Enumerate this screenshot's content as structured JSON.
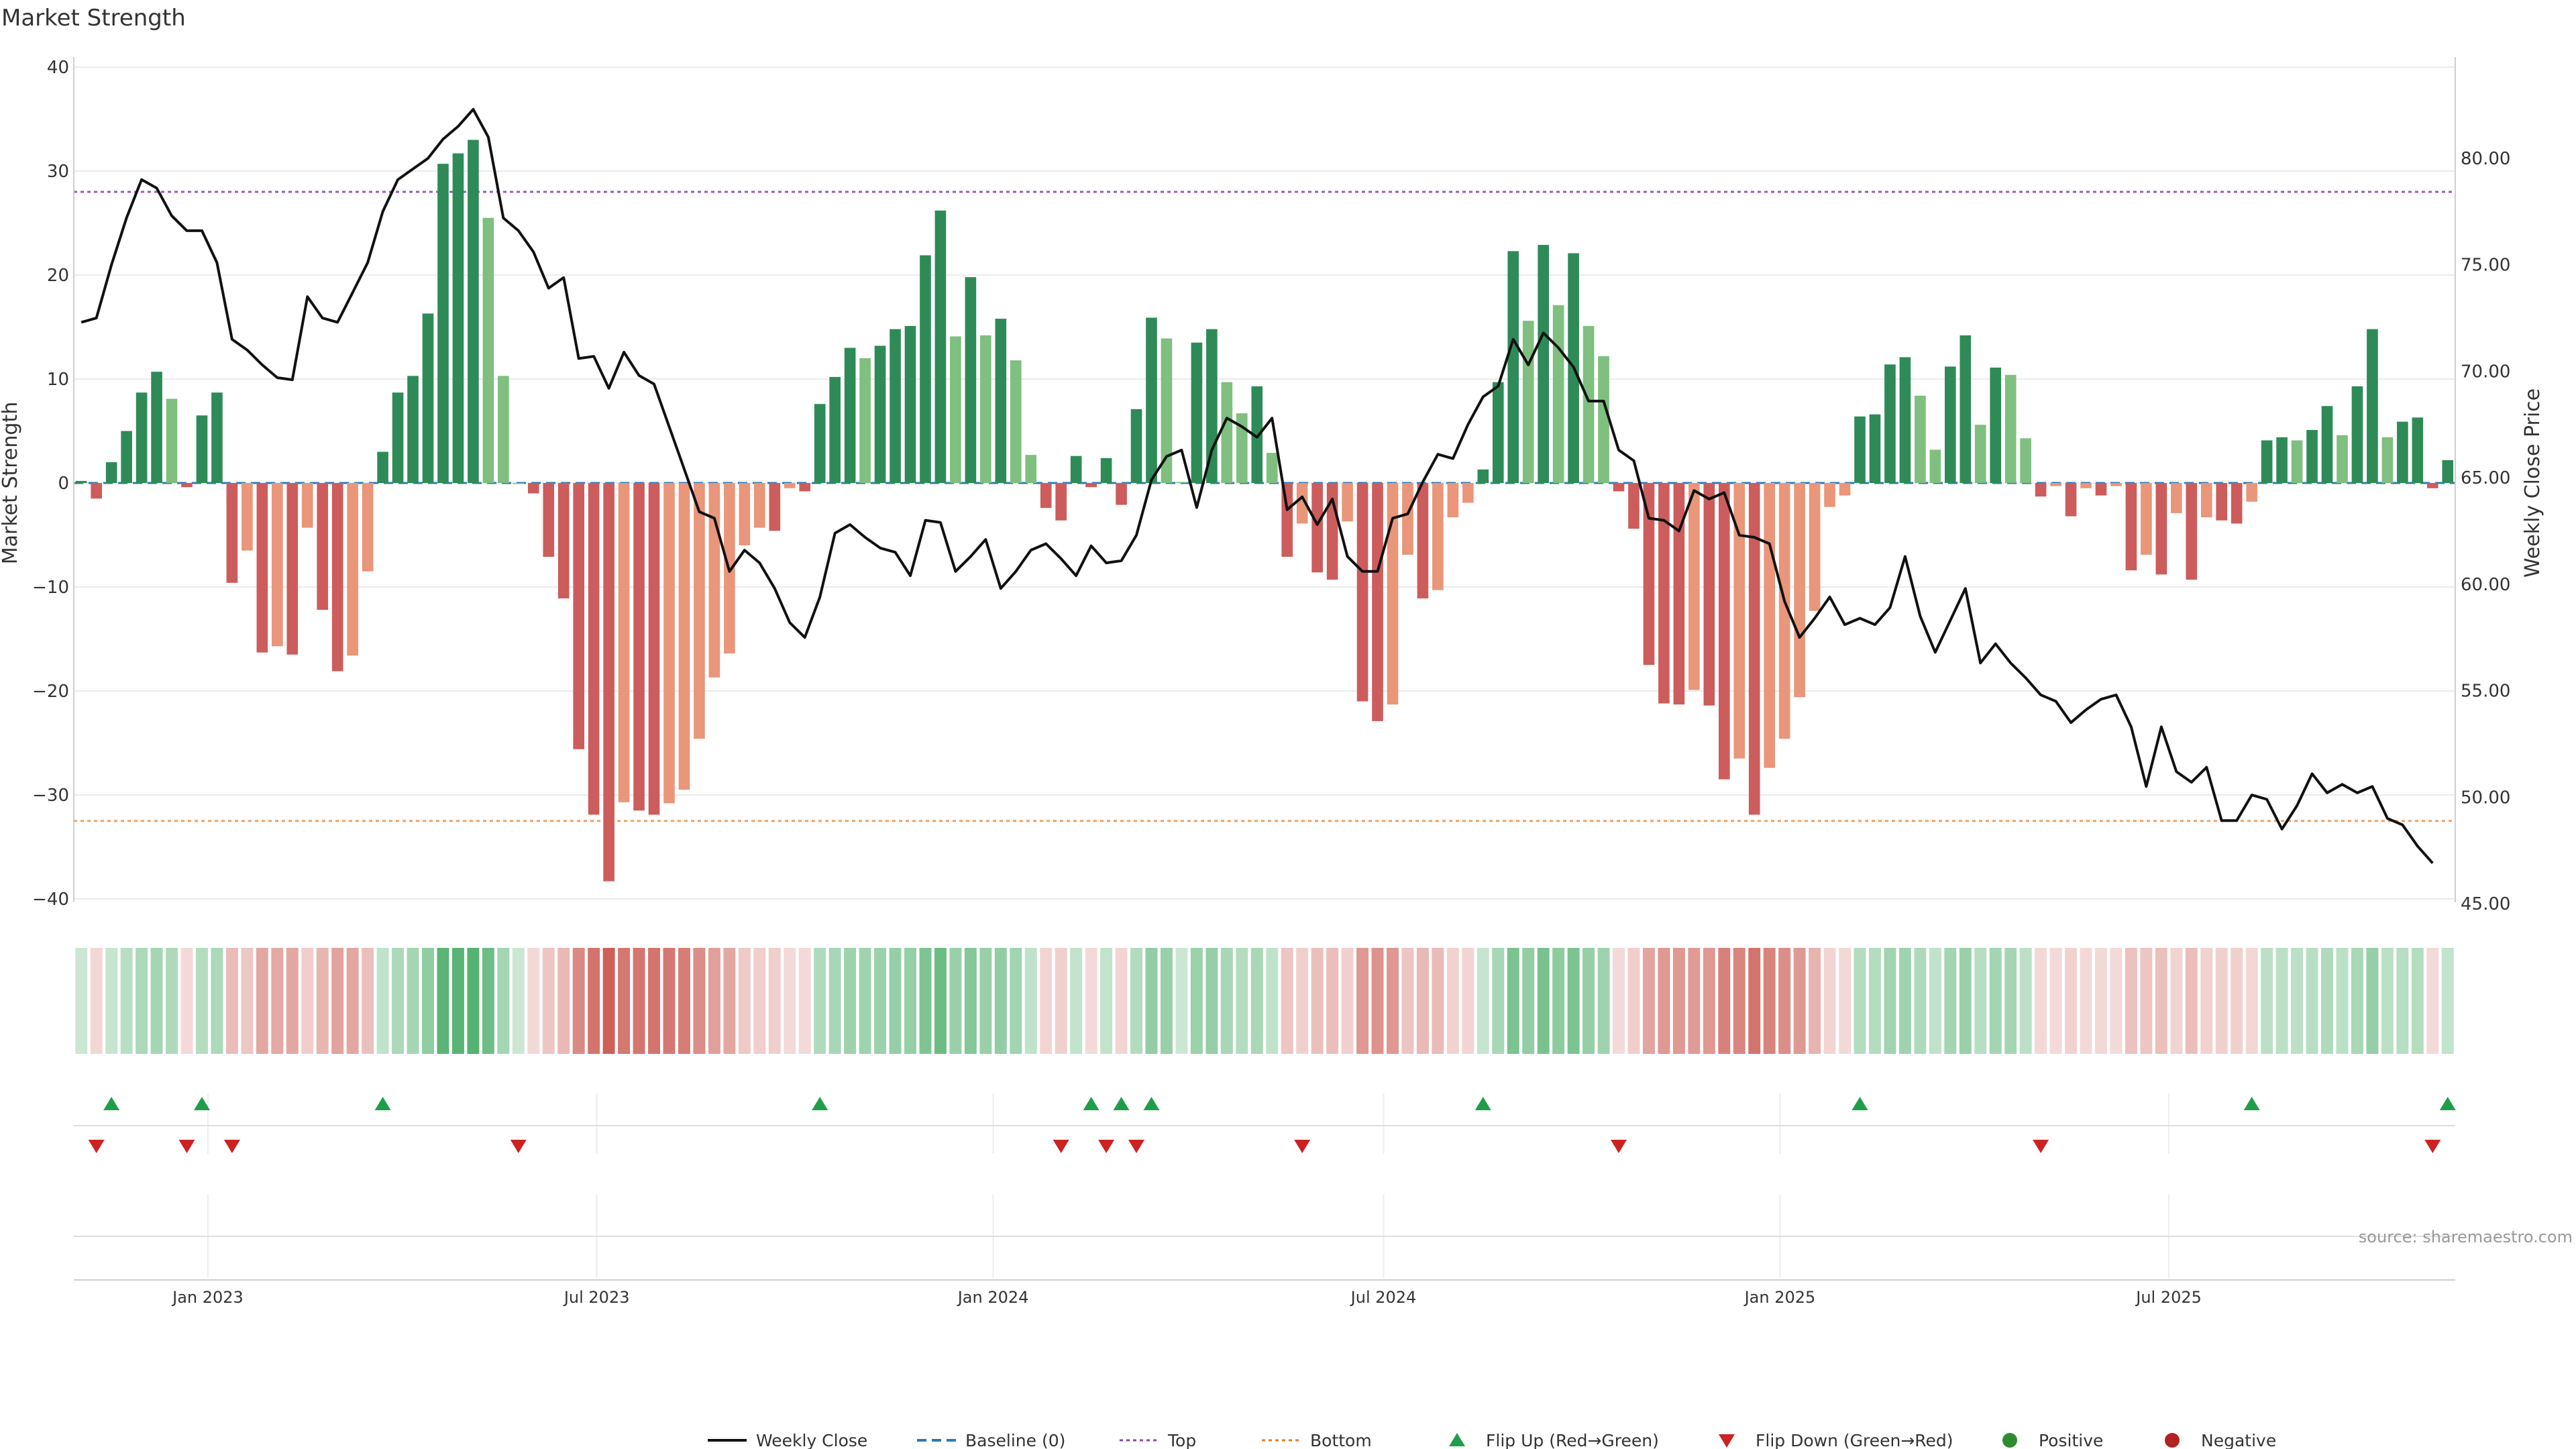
{
  "chart_data": {
    "type": "bar",
    "title": "Market Strength",
    "ylabel_left": "Market Strength",
    "ylabel_right": "Weekly Close Price",
    "ylim_left": [
      -42,
      40
    ],
    "yticks_left": [
      40,
      30,
      20,
      10,
      0,
      -10,
      -20,
      -30,
      -40
    ],
    "ytick_labels_left": [
      "40",
      "30",
      "20",
      "10",
      "0",
      "−10",
      "−20",
      "−30",
      "−40"
    ],
    "ylim_right": [
      45,
      83
    ],
    "yticks_right": [
      80,
      75,
      70,
      65,
      60,
      55,
      50,
      45
    ],
    "ytick_labels_right": [
      "80.00",
      "75.00",
      "70.00",
      "65.00",
      "60.00",
      "55.00",
      "50.00",
      "45.00"
    ],
    "x_ticks": [
      {
        "label": "Jan 2023",
        "index": 8.4
      },
      {
        "label": "Jul 2023",
        "index": 34.2
      },
      {
        "label": "Jan 2024",
        "index": 60.5
      },
      {
        "label": "Jul 2024",
        "index": 86.4
      },
      {
        "label": "Jan 2025",
        "index": 112.7
      },
      {
        "label": "Jul 2025",
        "index": 138.5
      }
    ],
    "top_level": 28,
    "bottom_level": -32.5,
    "baseline": 0,
    "strength": [
      0.2,
      -1.5,
      2,
      5,
      8.7,
      10.7,
      8.1,
      -0.4,
      6.5,
      8.7,
      -9.6,
      -6.5,
      -16.3,
      -15.7,
      -16.5,
      -4.3,
      -12.2,
      -18.1,
      -16.6,
      -8.5,
      3,
      8.7,
      10.3,
      16.3,
      30.7,
      31.7,
      33,
      25.5,
      10.3,
      0,
      -1,
      -7.1,
      -11.1,
      -25.6,
      -31.9,
      -38.3,
      -30.7,
      -31.5,
      -31.9,
      -30.8,
      -29.5,
      -24.6,
      -18.7,
      -16.4,
      -6,
      -4.3,
      -4.6,
      -0.5,
      -0.8,
      7.6,
      10.2,
      13,
      12,
      13.2,
      14.8,
      15.1,
      21.9,
      26.2,
      14.1,
      19.8,
      14.2,
      15.8,
      11.8,
      2.7,
      -2.4,
      -3.6,
      2.6,
      -0.4,
      2.4,
      -2.1,
      7.1,
      15.9,
      13.9,
      0.1,
      13.5,
      14.8,
      9.7,
      6.7,
      9.3,
      2.9,
      -7.1,
      -3.9,
      -8.6,
      -9.3,
      -3.7,
      -21,
      -22.9,
      -21.3,
      -6.9,
      -11.1,
      -10.3,
      -3.3,
      -1.9,
      1.3,
      9.7,
      22.3,
      15.6,
      22.9,
      17.1,
      22.1,
      15.1,
      12.2,
      -0.8,
      -4.4,
      -17.5,
      -21.2,
      -21.3,
      -19.9,
      -21.4,
      -28.5,
      -26.5,
      -31.9,
      -27.4,
      -24.6,
      -20.6,
      -12.3,
      -2.3,
      -1.2,
      6.4,
      6.6,
      11.4,
      12.1,
      8.4,
      3.2,
      11.2,
      14.2,
      5.6,
      11.1,
      10.4,
      4.3,
      -1.3,
      -0.3,
      -3.2,
      -0.5,
      -1.2,
      -0.3,
      -8.4,
      -6.9,
      -8.8,
      -2.9,
      -9.3,
      -3.3,
      -3.6,
      -3.9,
      -1.8,
      4.1,
      4.4,
      4.1,
      5.1,
      7.4,
      4.6,
      9.3,
      14.8,
      4.4,
      5.9,
      6.3,
      -0.5,
      2.2
    ],
    "weekly_close": [
      72.3,
      72.5,
      75,
      77.2,
      79,
      78.6,
      77.3,
      76.6,
      76.6,
      75.1,
      71.5,
      71,
      70.3,
      69.7,
      69.6,
      73.5,
      72.5,
      72.3,
      73.7,
      75.1,
      77.5,
      79,
      79.5,
      80,
      80.9,
      81.5,
      82.3,
      81,
      77.2,
      76.6,
      75.6,
      73.9,
      74.4,
      70.6,
      70.7,
      69.2,
      70.9,
      69.8,
      69.4,
      67.4,
      65.4,
      63.4,
      63.1,
      60.6,
      61.6,
      61,
      59.8,
      58.2,
      57.5,
      59.4,
      62.4,
      62.8,
      62.2,
      61.7,
      61.5,
      60.4,
      63,
      62.9,
      60.6,
      61.3,
      62.1,
      59.8,
      60.6,
      61.6,
      61.9,
      61.2,
      60.4,
      61.8,
      61,
      61.1,
      62.3,
      64.9,
      66,
      66.3,
      63.6,
      66.3,
      67.8,
      67.4,
      66.9,
      67.8,
      63.5,
      64.1,
      62.8,
      64,
      61.3,
      60.6,
      60.6,
      63.1,
      63.3,
      64.8,
      66.1,
      65.9,
      67.5,
      68.8,
      69.3,
      71.5,
      70.3,
      71.8,
      71.1,
      70.2,
      68.6,
      68.6,
      66.3,
      65.8,
      63.1,
      63,
      62.5,
      64.4,
      64,
      64.3,
      62.3,
      62.2,
      61.9,
      59.2,
      57.5,
      58.4,
      59.4,
      58.1,
      58.4,
      58.1,
      58.9,
      61.3,
      58.5,
      56.8,
      58.3,
      59.8,
      56.3,
      57.2,
      56.3,
      55.6,
      54.8,
      54.5,
      53.5,
      54.1,
      54.6,
      54.8,
      53.3,
      50.5,
      53.3,
      51.2,
      50.7,
      51.4,
      48.9,
      48.9,
      50.1,
      49.9,
      48.5,
      49.6,
      51.1,
      50.2,
      50.6,
      50.2,
      50.5,
      49,
      48.7,
      47.7,
      46.9
    ],
    "heat_strip": "41-month rolling strength tiles (colour encodes sign and magnitude of market strength)",
    "flip_up_indices": [
      2,
      8,
      20,
      49,
      67,
      69,
      71,
      93,
      118,
      144,
      157
    ],
    "flip_down_indices": [
      1,
      7,
      10,
      29,
      65,
      68,
      70,
      81,
      102,
      130,
      156
    ],
    "legend": [
      {
        "label": "Weekly Close",
        "kind": "line",
        "color": "#111111"
      },
      {
        "label": "Baseline (0)",
        "kind": "dash",
        "color": "#2b7bb9"
      },
      {
        "label": "Top",
        "kind": "dot",
        "color": "#8e44ad"
      },
      {
        "label": "Bottom",
        "kind": "dot",
        "color": "#e67e22"
      },
      {
        "label": "Flip Up (Red→Green)",
        "kind": "tri-up",
        "color": "#1f9e4a"
      },
      {
        "label": "Flip Down (Green→Red)",
        "kind": "tri-down",
        "color": "#cc2222"
      },
      {
        "label": "Positive",
        "kind": "circle",
        "color": "#2e8b2e"
      },
      {
        "label": "Negative",
        "kind": "circle",
        "color": "#b22222"
      }
    ],
    "source": "source: sharemaestro.com"
  },
  "colors": {
    "pos_strong": "#2e8b57",
    "pos_weak": "#7fbf7f",
    "neg_strong": "#cd5c5c",
    "neg_weak": "#e9967a",
    "price_line": "#111111",
    "top_line": "#9b59b6",
    "bottom_line": "#f0a060",
    "baseline": "#2b7bb9"
  }
}
